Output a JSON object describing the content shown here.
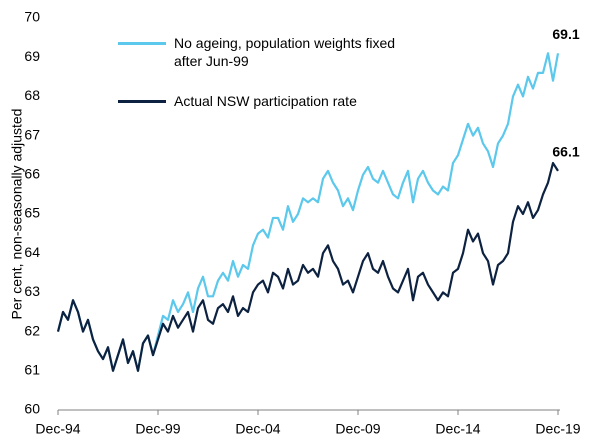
{
  "chart_data": {
    "type": "line",
    "y_label": "Per cent, non-seasonally adjusted",
    "x": [
      "Dec-94",
      "Mar-95",
      "Jun-95",
      "Sep-95",
      "Dec-95",
      "Mar-96",
      "Jun-96",
      "Sep-96",
      "Dec-96",
      "Mar-97",
      "Jun-97",
      "Sep-97",
      "Dec-97",
      "Mar-98",
      "Jun-98",
      "Sep-98",
      "Dec-98",
      "Mar-99",
      "Jun-99",
      "Sep-99",
      "Dec-99",
      "Mar-00",
      "Jun-00",
      "Sep-00",
      "Dec-00",
      "Mar-01",
      "Jun-01",
      "Sep-01",
      "Dec-01",
      "Mar-02",
      "Jun-02",
      "Sep-02",
      "Dec-02",
      "Mar-03",
      "Jun-03",
      "Sep-03",
      "Dec-03",
      "Mar-04",
      "Jun-04",
      "Sep-04",
      "Dec-04",
      "Mar-05",
      "Jun-05",
      "Sep-05",
      "Dec-05",
      "Mar-06",
      "Jun-06",
      "Sep-06",
      "Dec-06",
      "Mar-07",
      "Jun-07",
      "Sep-07",
      "Dec-07",
      "Mar-08",
      "Jun-08",
      "Sep-08",
      "Dec-08",
      "Mar-09",
      "Jun-09",
      "Sep-09",
      "Dec-09",
      "Mar-10",
      "Jun-10",
      "Sep-10",
      "Dec-10",
      "Mar-11",
      "Jun-11",
      "Sep-11",
      "Dec-11",
      "Mar-12",
      "Jun-12",
      "Sep-12",
      "Dec-12",
      "Mar-13",
      "Jun-13",
      "Sep-13",
      "Dec-13",
      "Mar-14",
      "Jun-14",
      "Sep-14",
      "Dec-14",
      "Mar-15",
      "Jun-15",
      "Sep-15",
      "Dec-15",
      "Mar-16",
      "Jun-16",
      "Sep-16",
      "Dec-16",
      "Mar-17",
      "Jun-17",
      "Sep-17",
      "Dec-17",
      "Mar-18",
      "Jun-18",
      "Sep-18",
      "Dec-18",
      "Mar-19",
      "Jun-19",
      "Sep-19",
      "Dec-19"
    ],
    "series": [
      {
        "name": "No ageing, population weights fixed after Jun-99",
        "color": "#5bc8ec",
        "values": [
          62.0,
          62.5,
          62.3,
          62.8,
          62.5,
          62.0,
          62.3,
          61.8,
          61.5,
          61.3,
          61.6,
          61.0,
          61.4,
          61.8,
          61.2,
          61.5,
          61.0,
          61.7,
          61.9,
          61.4,
          61.9,
          62.4,
          62.3,
          62.8,
          62.5,
          62.7,
          63.0,
          62.5,
          63.1,
          63.4,
          62.9,
          62.9,
          63.3,
          63.5,
          63.3,
          63.8,
          63.4,
          63.7,
          63.6,
          64.2,
          64.5,
          64.6,
          64.4,
          64.9,
          64.9,
          64.6,
          65.2,
          64.8,
          65.0,
          65.4,
          65.3,
          65.4,
          65.3,
          65.9,
          66.1,
          65.8,
          65.6,
          65.2,
          65.4,
          65.1,
          65.6,
          66.0,
          66.2,
          65.9,
          65.8,
          66.1,
          65.8,
          65.5,
          65.4,
          65.8,
          66.1,
          65.3,
          65.9,
          66.1,
          65.8,
          65.6,
          65.5,
          65.7,
          65.6,
          66.3,
          66.5,
          66.9,
          67.3,
          67.0,
          67.2,
          66.8,
          66.6,
          66.2,
          66.8,
          67.0,
          67.3,
          68.0,
          68.3,
          68.0,
          68.5,
          68.2,
          68.6,
          68.6,
          69.1,
          68.4,
          69.1
        ]
      },
      {
        "name": "Actual NSW participation rate",
        "color": "#0d2240",
        "values": [
          62.0,
          62.5,
          62.3,
          62.8,
          62.5,
          62.0,
          62.3,
          61.8,
          61.5,
          61.3,
          61.6,
          61.0,
          61.4,
          61.8,
          61.2,
          61.5,
          61.0,
          61.7,
          61.9,
          61.4,
          61.8,
          62.2,
          62.0,
          62.4,
          62.1,
          62.3,
          62.5,
          62.0,
          62.6,
          62.8,
          62.3,
          62.2,
          62.6,
          62.7,
          62.5,
          62.9,
          62.4,
          62.6,
          62.5,
          63.0,
          63.2,
          63.3,
          63.0,
          63.5,
          63.4,
          63.1,
          63.6,
          63.2,
          63.3,
          63.7,
          63.5,
          63.6,
          63.4,
          64.0,
          64.2,
          63.8,
          63.6,
          63.2,
          63.3,
          63.0,
          63.4,
          63.8,
          64.0,
          63.6,
          63.5,
          63.8,
          63.4,
          63.1,
          63.0,
          63.3,
          63.6,
          62.8,
          63.4,
          63.5,
          63.2,
          63.0,
          62.8,
          63.0,
          62.9,
          63.5,
          63.6,
          64.0,
          64.6,
          64.3,
          64.5,
          64.0,
          63.8,
          63.2,
          63.7,
          63.8,
          64.0,
          64.8,
          65.2,
          65.0,
          65.3,
          64.9,
          65.1,
          65.5,
          65.8,
          66.3,
          66.1
        ]
      }
    ],
    "ylim": [
      60,
      70
    ],
    "yticks": [
      60,
      61,
      62,
      63,
      64,
      65,
      66,
      67,
      68,
      69,
      70
    ],
    "xticks": [
      "Dec-94",
      "Dec-99",
      "Dec-04",
      "Dec-09",
      "Dec-14",
      "Dec-19"
    ],
    "grid": false,
    "legend": "upper left"
  }
}
